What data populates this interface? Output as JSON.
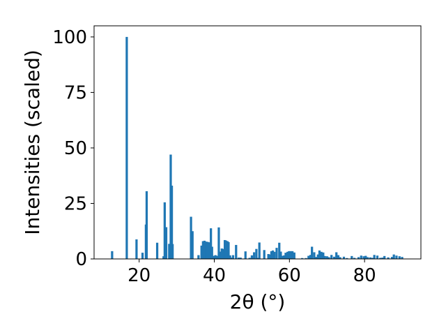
{
  "chart_data": {
    "type": "bar",
    "xlabel": "2θ (°)",
    "ylabel": "Intensities (scaled)",
    "xlim": [
      8,
      95
    ],
    "ylim": [
      0,
      105
    ],
    "xticks": [
      20,
      40,
      60,
      80
    ],
    "yticks": [
      0,
      25,
      50,
      75,
      100
    ],
    "bar_color": "#1f77b4",
    "bar_width": 0.6,
    "grid": false,
    "x": [
      12.8,
      16.7,
      19.3,
      20.9,
      21.8,
      22.0,
      24.8,
      26.5,
      26.8,
      27.2,
      28.0,
      28.4,
      28.7,
      28.9,
      33.8,
      34.2,
      35.8,
      36.6,
      37.0,
      37.4,
      37.8,
      38.2,
      38.6,
      39.1,
      39.4,
      39.8,
      40.3,
      40.8,
      41.2,
      41.7,
      42.0,
      42.4,
      42.8,
      43.1,
      43.5,
      43.8,
      44.2,
      44.6,
      45.0,
      45.8,
      46.5,
      47.0,
      48.3,
      49.4,
      50.0,
      50.6,
      51.2,
      51.6,
      52.0,
      53.3,
      54.4,
      54.8,
      55.2,
      55.6,
      56.0,
      56.6,
      57.3,
      57.7,
      58.2,
      58.6,
      59.0,
      59.5,
      59.9,
      60.3,
      60.8,
      61.3,
      63.4,
      64.4,
      65.1,
      65.6,
      66.0,
      66.6,
      67.2,
      67.6,
      68.0,
      68.5,
      69.0,
      69.4,
      70.0,
      70.5,
      71.2,
      71.9,
      72.5,
      73.0,
      73.5,
      74.5,
      75.3,
      76.6,
      77.3,
      78.4,
      79.1,
      79.8,
      80.3,
      80.8,
      81.5,
      82.1,
      82.6,
      83.4,
      84.2,
      84.8,
      85.3,
      86.3,
      87.3,
      87.8,
      88.5,
      89.3,
      90.0
    ],
    "values": [
      3.5,
      100.0,
      8.8,
      2.8,
      15.5,
      30.5,
      7.3,
      1.2,
      25.5,
      14.3,
      6.8,
      47.0,
      33.0,
      6.7,
      19.0,
      12.5,
      1.7,
      6.0,
      8.0,
      8.2,
      7.8,
      7.7,
      7.5,
      13.8,
      5.5,
      1.4,
      1.7,
      1.4,
      14.2,
      3.3,
      4.7,
      4.5,
      8.5,
      8.3,
      8.0,
      7.6,
      1.6,
      0.6,
      1.7,
      6.3,
      0.6,
      0.6,
      3.4,
      0.5,
      1.6,
      3.0,
      4.5,
      0.5,
      7.4,
      4.0,
      2.2,
      2.0,
      3.5,
      3.8,
      3.2,
      5.0,
      7.3,
      3.3,
      1.4,
      1.6,
      2.8,
      3.2,
      3.5,
      3.5,
      3.5,
      2.9,
      0.4,
      0.4,
      1.4,
      1.8,
      5.5,
      3.0,
      0.9,
      2.0,
      3.8,
      3.2,
      2.9,
      1.3,
      1.2,
      0.8,
      1.8,
      1.0,
      3.0,
      1.7,
      0.8,
      1.0,
      0.4,
      1.3,
      0.5,
      0.8,
      1.5,
      1.2,
      1.4,
      0.8,
      0.7,
      0.5,
      1.8,
      1.5,
      0.5,
      0.6,
      1.3,
      0.7,
      0.9,
      2.0,
      1.5,
      1.2,
      0.9
    ]
  }
}
